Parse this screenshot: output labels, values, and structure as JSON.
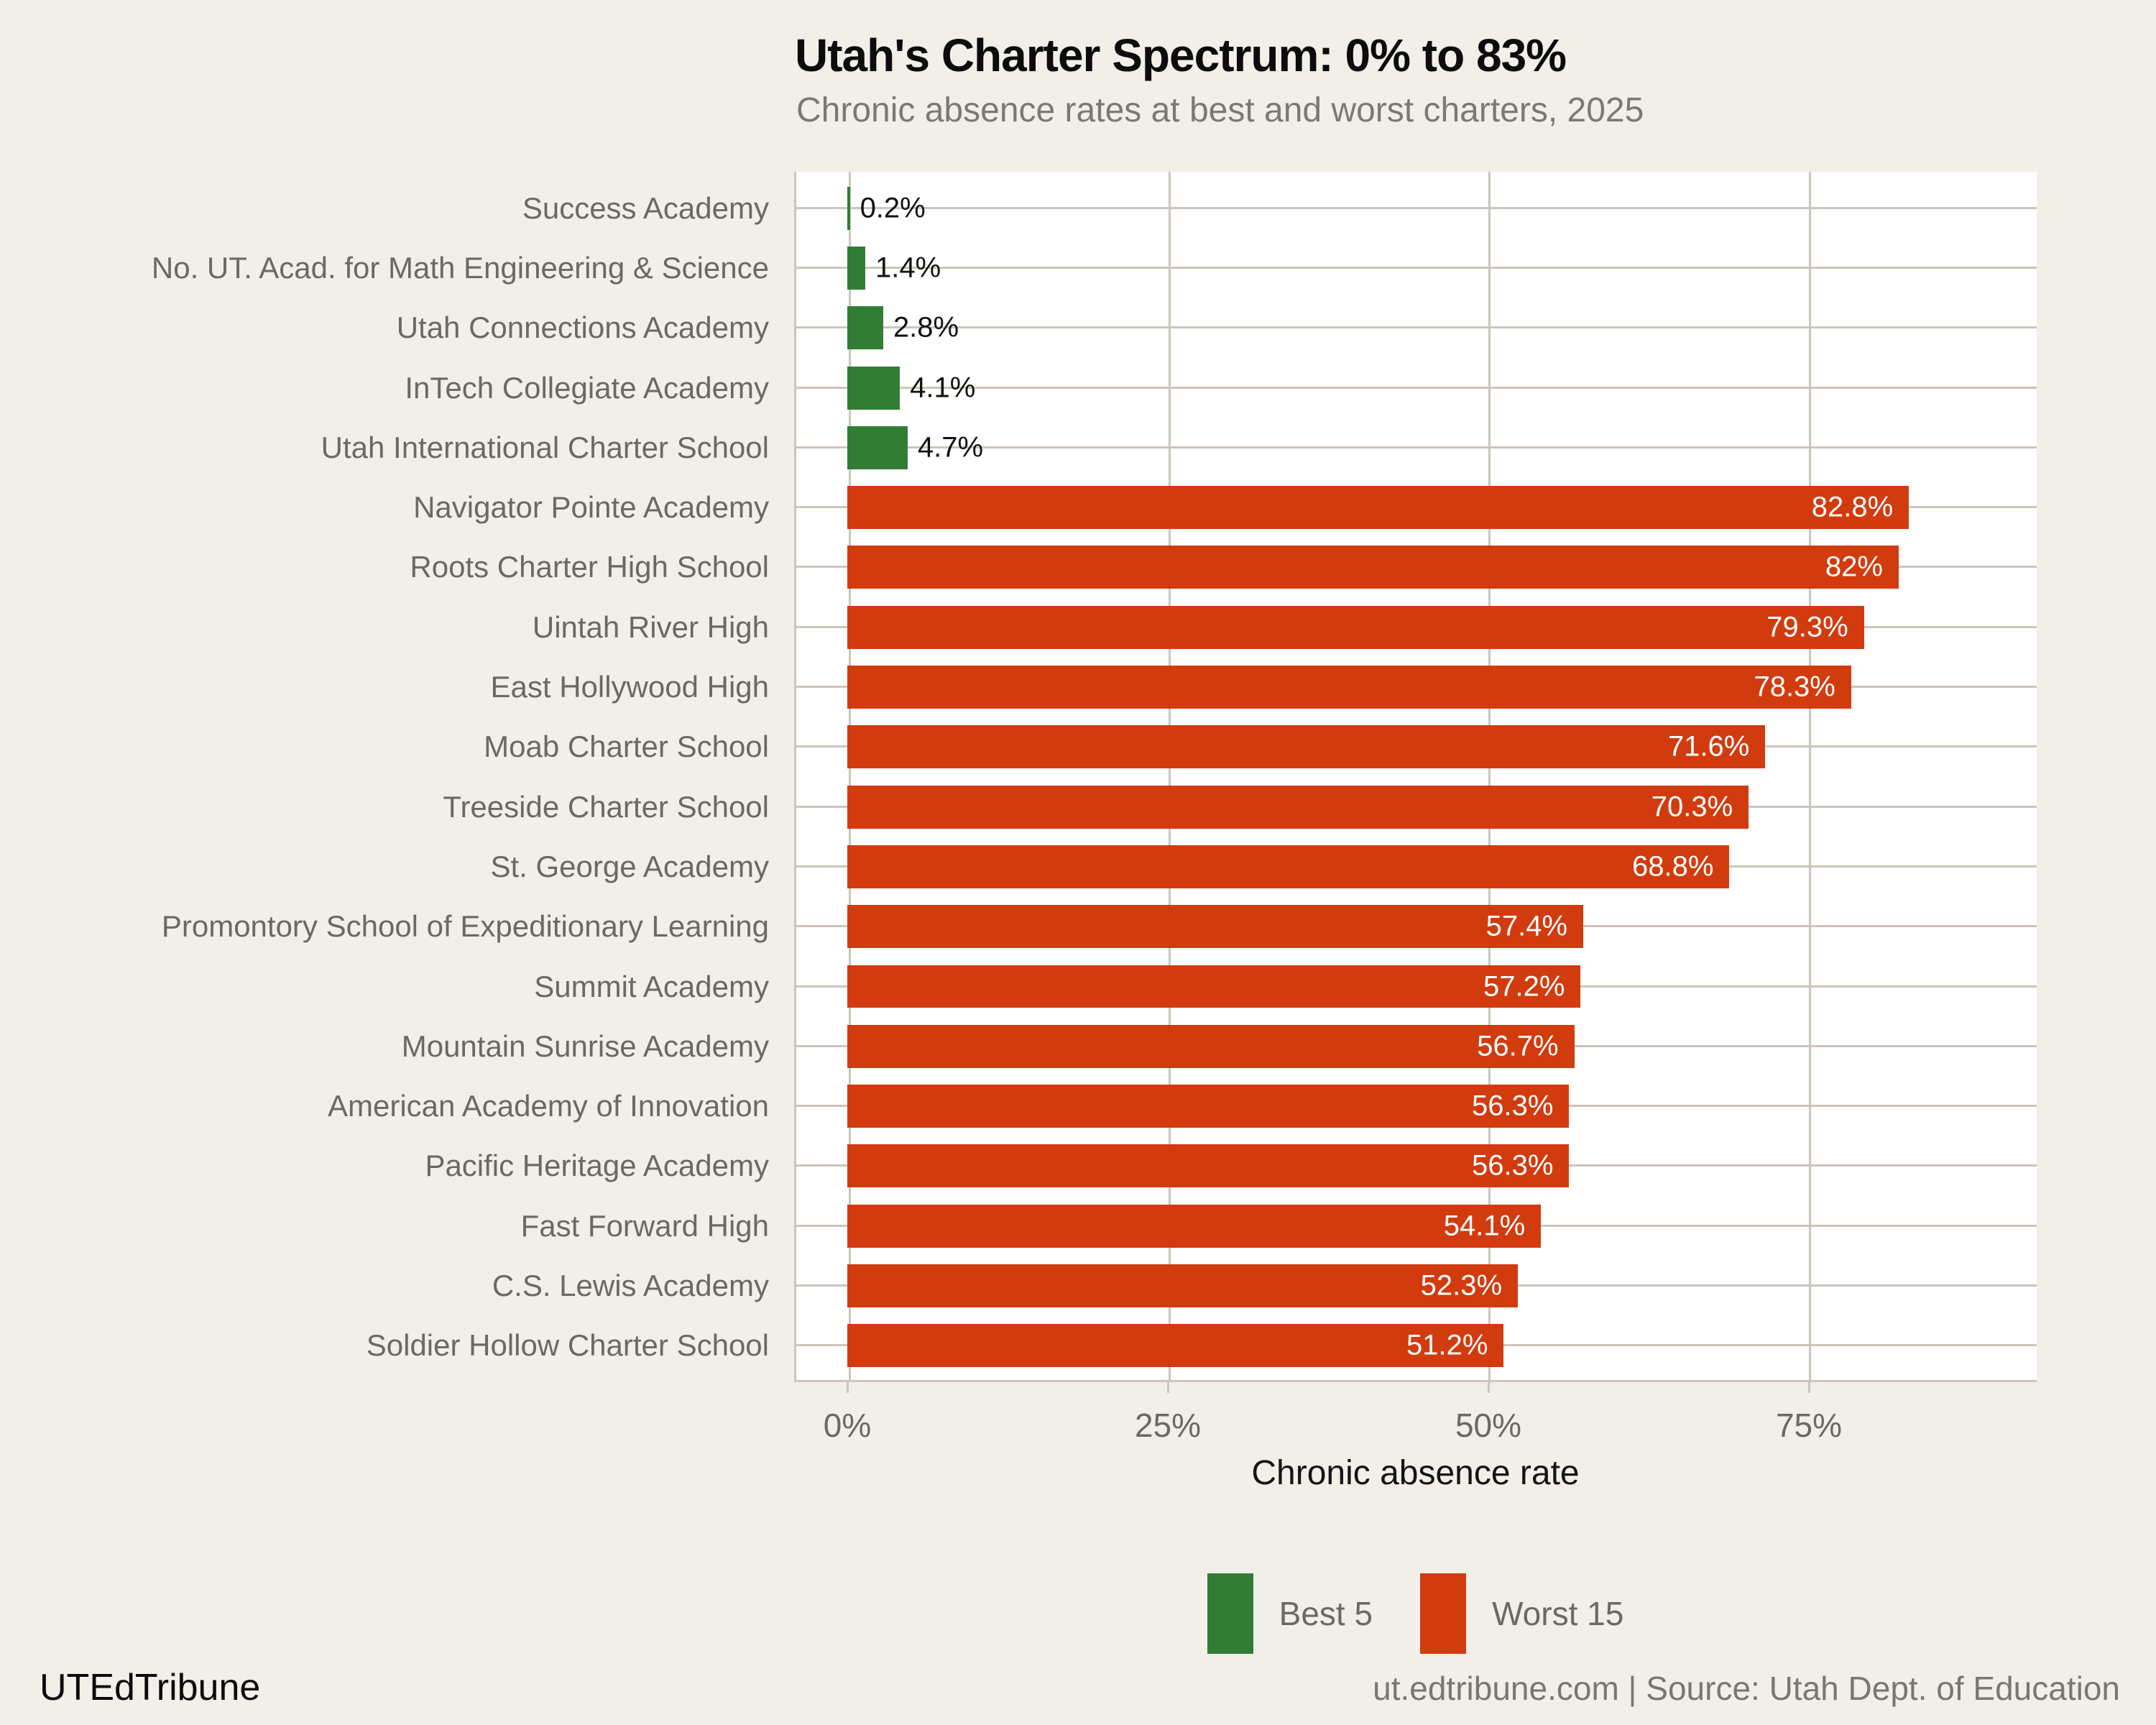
{
  "title": "Utah's Charter Spectrum: 0% to 83%",
  "subtitle": "Chronic absence rates at best and worst charters, 2025",
  "footer": {
    "brand": "UTEdTribune",
    "source": "ut.edtribune.com | Source: Utah Dept. of Education"
  },
  "colors": {
    "background": "#f2efe9",
    "panel": "#ffffff",
    "gridline": "#ccc5bb",
    "best": "#317d34",
    "worst": "#d23b0e",
    "value_label_inside": "#ffffff",
    "value_label_outside": "#111111"
  },
  "legend": {
    "position": "bottom-center",
    "items": [
      {
        "label": "Best 5",
        "color_key": "best"
      },
      {
        "label": "Worst 15",
        "color_key": "worst"
      }
    ]
  },
  "chart_data": {
    "type": "bar",
    "orientation": "horizontal",
    "title": "Utah's Charter Spectrum: 0% to 83%",
    "subtitle": "Chronic absence rates at best and worst charters, 2025",
    "xlabel": "Chronic absence rate",
    "ylabel": "",
    "xlim": [
      0,
      92.8
    ],
    "grid": true,
    "x_ticks": [
      {
        "value": 0,
        "label": "0%"
      },
      {
        "value": 25,
        "label": "25%"
      },
      {
        "value": 50,
        "label": "50%"
      },
      {
        "value": 75,
        "label": "75%"
      }
    ],
    "bars": [
      {
        "category": "Success Academy",
        "value": 0.2,
        "label": "0.2%",
        "group": "best"
      },
      {
        "category": "No. UT. Acad. for Math Engineering & Science",
        "value": 1.4,
        "label": "1.4%",
        "group": "best"
      },
      {
        "category": "Utah Connections Academy",
        "value": 2.8,
        "label": "2.8%",
        "group": "best"
      },
      {
        "category": "InTech Collegiate Academy",
        "value": 4.1,
        "label": "4.1%",
        "group": "best"
      },
      {
        "category": "Utah International Charter School",
        "value": 4.7,
        "label": "4.7%",
        "group": "best"
      },
      {
        "category": "Navigator Pointe Academy",
        "value": 82.8,
        "label": "82.8%",
        "group": "worst"
      },
      {
        "category": "Roots Charter High School",
        "value": 82,
        "label": "82%",
        "group": "worst"
      },
      {
        "category": "Uintah River High",
        "value": 79.3,
        "label": "79.3%",
        "group": "worst"
      },
      {
        "category": "East Hollywood High",
        "value": 78.3,
        "label": "78.3%",
        "group": "worst"
      },
      {
        "category": "Moab Charter School",
        "value": 71.6,
        "label": "71.6%",
        "group": "worst"
      },
      {
        "category": "Treeside Charter School",
        "value": 70.3,
        "label": "70.3%",
        "group": "worst"
      },
      {
        "category": "St. George Academy",
        "value": 68.8,
        "label": "68.8%",
        "group": "worst"
      },
      {
        "category": "Promontory School of Expeditionary Learning",
        "value": 57.4,
        "label": "57.4%",
        "group": "worst"
      },
      {
        "category": "Summit Academy",
        "value": 57.2,
        "label": "57.2%",
        "group": "worst"
      },
      {
        "category": "Mountain Sunrise Academy",
        "value": 56.7,
        "label": "56.7%",
        "group": "worst"
      },
      {
        "category": "American Academy of Innovation",
        "value": 56.3,
        "label": "56.3%",
        "group": "worst"
      },
      {
        "category": "Pacific Heritage Academy",
        "value": 56.3,
        "label": "56.3%",
        "group": "worst"
      },
      {
        "category": "Fast Forward High",
        "value": 54.1,
        "label": "54.1%",
        "group": "worst"
      },
      {
        "category": "C.S. Lewis Academy",
        "value": 52.3,
        "label": "52.3%",
        "group": "worst"
      },
      {
        "category": "Soldier Hollow Charter School",
        "value": 51.2,
        "label": "51.2%",
        "group": "worst"
      }
    ]
  }
}
